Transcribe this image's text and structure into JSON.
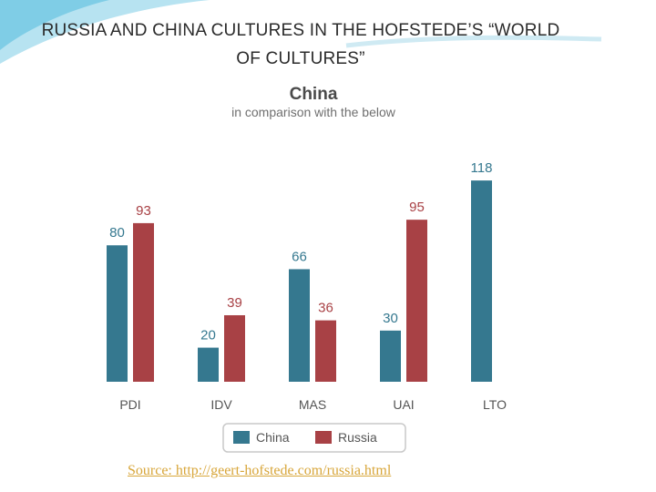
{
  "slide": {
    "title_line1": "RUSSIA AND CHINA CULTURES IN THE HOFSTEDE’S “WORLD",
    "title_line2": "OF CULTURES”",
    "source_text": "Source: http://geert-hofstede.com/russia.html"
  },
  "colors": {
    "china": "#35788f",
    "russia": "#a84145",
    "accent_swoosh": "#6cc6e0",
    "source_link": "#d8a63a"
  },
  "chart_data": {
    "type": "bar",
    "title": "China",
    "subtitle": "in comparison with the below",
    "categories": [
      "PDI",
      "IDV",
      "MAS",
      "UAI",
      "LTO"
    ],
    "series": [
      {
        "name": "China",
        "values": [
          80,
          20,
          66,
          30,
          118
        ]
      },
      {
        "name": "Russia",
        "values": [
          93,
          39,
          36,
          95,
          null
        ]
      }
    ],
    "ylim": [
      0,
      125
    ],
    "grid": false,
    "legend_position": "bottom-center"
  }
}
